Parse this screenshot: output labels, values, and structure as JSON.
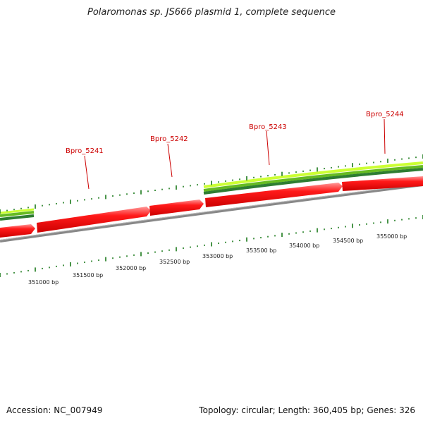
{
  "title": "Polaromonas sp. JS666 plasmid 1, complete sequence",
  "footer": {
    "accession": "Accession: NC_007949",
    "summary": "Topology: circular; Length: 360,405 bp; Genes: 326"
  },
  "genes": [
    {
      "label": "Bpro_5241"
    },
    {
      "label": "Bpro_5242"
    },
    {
      "label": "Bpro_5243"
    },
    {
      "label": "Bpro_5244"
    }
  ],
  "positions": [
    "351000 bp",
    "351500 bp",
    "352000 bp",
    "352500 bp",
    "353000 bp",
    "353500 bp",
    "354000 bp",
    "354500 bp",
    "355000 bp"
  ],
  "colors": {
    "gene": "#e60000",
    "gene_highlight": "#ff8080",
    "band_light": "#ccff33",
    "band_mid": "#66bb22",
    "band_dark": "#2e7d32",
    "backbone": "#888888",
    "tick": "#1a7a1a",
    "label": "#cc0000"
  }
}
